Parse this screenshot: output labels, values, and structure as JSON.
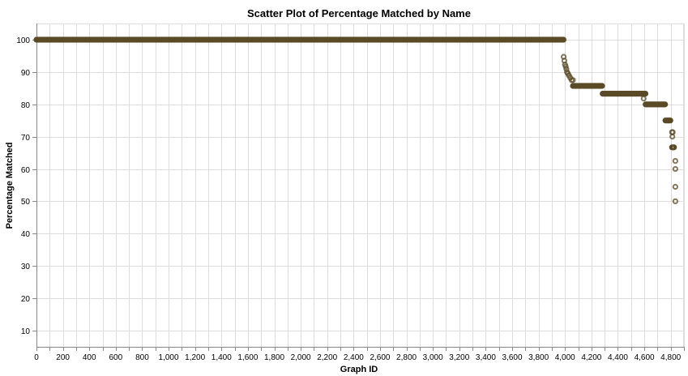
{
  "chart_data": {
    "type": "scatter",
    "title": "Scatter Plot of Percentage Matched by Name",
    "xlabel": "Graph ID",
    "ylabel": "Percentage Matched",
    "xlim": [
      0,
      4900
    ],
    "ylim": [
      5,
      105
    ],
    "x_ticks": [
      0,
      200,
      400,
      600,
      800,
      1000,
      1200,
      1400,
      1600,
      1800,
      2000,
      2200,
      2400,
      2600,
      2800,
      3000,
      3200,
      3400,
      3600,
      3800,
      4000,
      4200,
      4400,
      4600,
      4800
    ],
    "x_tick_labels": [
      "0",
      "200",
      "400",
      "600",
      "800",
      "1,000",
      "1,200",
      "1,400",
      "1,600",
      "1,800",
      "2,000",
      "2,200",
      "2,400",
      "2,600",
      "2,800",
      "3,000",
      "3,200",
      "3,400",
      "3,600",
      "3,800",
      "4,000",
      "4,200",
      "4,400",
      "4,600",
      "4,800"
    ],
    "x_minor_step": 100,
    "y_ticks": [
      10,
      20,
      30,
      40,
      50,
      60,
      70,
      80,
      90,
      100
    ],
    "y_tick_labels": [
      "10",
      "20",
      "30",
      "40",
      "50",
      "60",
      "70",
      "80",
      "90",
      "100"
    ],
    "grid": true,
    "legend": "none",
    "color": "#5a4a26",
    "segments": [
      {
        "x_start": 0,
        "x_end": 3995,
        "y": 100
      },
      {
        "x_start": 4060,
        "x_end": 4285,
        "y": 85.7
      },
      {
        "x_start": 4285,
        "x_end": 4610,
        "y": 83.3
      },
      {
        "x_start": 4610,
        "x_end": 4760,
        "y": 80
      },
      {
        "x_start": 4760,
        "x_end": 4800,
        "y": 75
      },
      {
        "x_start": 4810,
        "x_end": 4830,
        "y": 66.7
      }
    ],
    "points": [
      {
        "x": 3990,
        "y": 94.7
      },
      {
        "x": 3995,
        "y": 93.5
      },
      {
        "x": 4000,
        "y": 92.3
      },
      {
        "x": 4005,
        "y": 91.7
      },
      {
        "x": 4010,
        "y": 90.9
      },
      {
        "x": 4015,
        "y": 90
      },
      {
        "x": 4022,
        "y": 89.5
      },
      {
        "x": 4030,
        "y": 88.9
      },
      {
        "x": 4040,
        "y": 88.2
      },
      {
        "x": 4050,
        "y": 87.5
      },
      {
        "x": 4060,
        "y": 87.5
      },
      {
        "x": 4595,
        "y": 81.8
      },
      {
        "x": 4810,
        "y": 71.4
      },
      {
        "x": 4815,
        "y": 71.4
      },
      {
        "x": 4812,
        "y": 70
      },
      {
        "x": 4835,
        "y": 62.5
      },
      {
        "x": 4835,
        "y": 60
      },
      {
        "x": 4835,
        "y": 54.5
      },
      {
        "x": 4835,
        "y": 50
      }
    ]
  }
}
